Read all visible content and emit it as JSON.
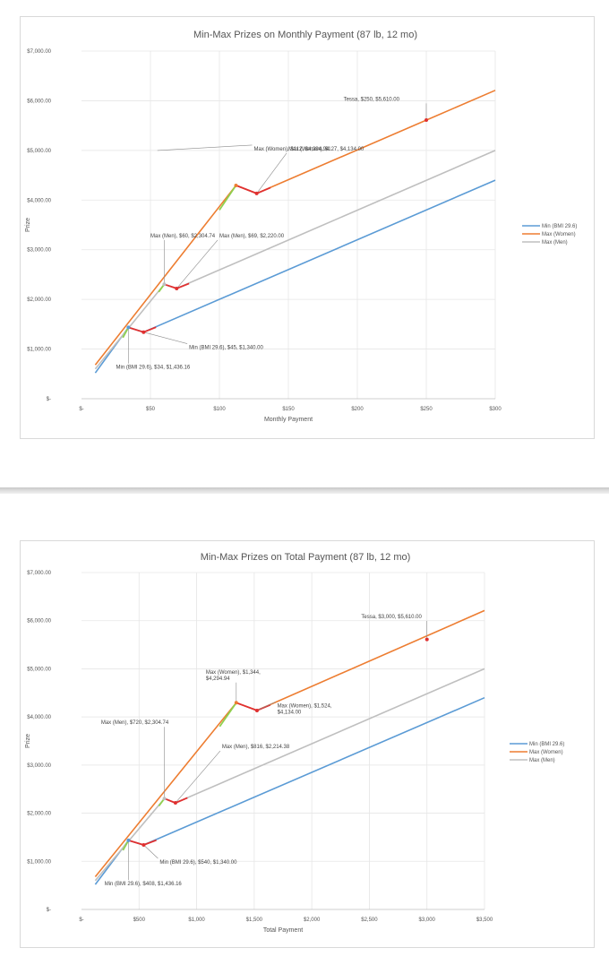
{
  "chart_data": [
    {
      "type": "line",
      "title": "Min-Max Prizes on Monthly Payment (87 lb, 12 mo)",
      "xlabel": "Monthly Payment",
      "ylabel": "Prize",
      "xlim": [
        0,
        300
      ],
      "ylim": [
        0,
        7000
      ],
      "x_ticks": [
        0,
        50,
        100,
        150,
        200,
        250,
        300
      ],
      "x_tick_labels": [
        "$-",
        "$50",
        "$100",
        "$150",
        "$200",
        "$250",
        "$300"
      ],
      "y_ticks": [
        0,
        1000,
        2000,
        3000,
        4000,
        5000,
        6000,
        7000
      ],
      "y_tick_labels": [
        "$-",
        "$1,000.00",
        "$2,000.00",
        "$3,000.00",
        "$4,000.00",
        "$5,000.00",
        "$6,000.00",
        "$7,000.00"
      ],
      "grid": true,
      "legend_position": "right",
      "series": [
        {
          "name": "Min (BMI 29.6)",
          "color": "#5b9bd5",
          "points": [
            [
              10,
              520
            ],
            [
              34,
              1436.16
            ],
            [
              45,
              1340
            ],
            [
              300,
              4400
            ]
          ]
        },
        {
          "name": "Max (Women)",
          "color": "#ed7d31",
          "points": [
            [
              10,
              680
            ],
            [
              112,
              4294.94
            ],
            [
              127,
              4134
            ],
            [
              300,
              6210
            ]
          ]
        },
        {
          "name": "Max (Men)",
          "color": "#bfbfbf",
          "points": [
            [
              10,
              600
            ],
            [
              60,
              2304.74
            ],
            [
              69,
              2220
            ],
            [
              300,
              5000
            ]
          ]
        }
      ],
      "highlights": [
        {
          "color": "#8fd14f",
          "points": [
            [
              30,
              1230
            ],
            [
              34,
              1436.16
            ]
          ]
        },
        {
          "color": "#8fd14f",
          "points": [
            [
              100,
              3800
            ],
            [
              112,
              4294.94
            ]
          ]
        },
        {
          "color": "#8fd14f",
          "points": [
            [
              56,
              2150
            ],
            [
              60,
              2304.74
            ]
          ]
        },
        {
          "color": "#e03030",
          "points": [
            [
              34,
              1436.16
            ],
            [
              45,
              1340
            ],
            [
              54,
              1440
            ]
          ]
        },
        {
          "color": "#e03030",
          "points": [
            [
              112,
              4294.94
            ],
            [
              127,
              4134
            ],
            [
              137,
              4250
            ]
          ]
        },
        {
          "color": "#e03030",
          "points": [
            [
              60,
              2304.74
            ],
            [
              69,
              2220
            ],
            [
              78,
              2320
            ]
          ]
        }
      ],
      "markers": [
        {
          "x": 34,
          "y": 1436.16,
          "color": "#5b9bd5"
        },
        {
          "x": 45,
          "y": 1340,
          "color": "#e03030"
        },
        {
          "x": 112,
          "y": 4294.94,
          "color": "#ed7d31"
        },
        {
          "x": 127,
          "y": 4134,
          "color": "#e03030"
        },
        {
          "x": 60,
          "y": 2304.74,
          "color": "#bfbfbf"
        },
        {
          "x": 69,
          "y": 2220,
          "color": "#e03030"
        },
        {
          "x": 250,
          "y": 5610,
          "color": "#e03030"
        }
      ],
      "annotations": [
        {
          "lines": [
            "Max (Women), $112, $4,294.94"
          ],
          "px": 55,
          "tx": 125,
          "ty": 5000
        },
        {
          "lines": [
            "Max (Women), $127, $4,134.00"
          ],
          "px": 127,
          "tx": 150,
          "ty": 5000
        },
        {
          "lines": [
            "Max (Men), $60, $2,304.74"
          ],
          "px": 60,
          "tx": 50,
          "ty": 3250
        },
        {
          "lines": [
            "Max (Men), $69, $2,220.00"
          ],
          "px": 69,
          "tx": 100,
          "ty": 3250
        },
        {
          "lines": [
            "Min (BMI 29.6), $45, $1,340.00"
          ],
          "px": 45,
          "tx": 78,
          "ty": 1000
        },
        {
          "lines": [
            "Min (BMI 29.6), $34, $1,436.16"
          ],
          "px": 34,
          "tx": 25,
          "ty": 600
        },
        {
          "lines": [
            "Tessa, $250, $5,610.00"
          ],
          "px": 250,
          "tx": 190,
          "ty": 6000
        }
      ]
    },
    {
      "type": "line",
      "title": "Min-Max Prizes on Total Payment (87 lb, 12 mo)",
      "xlabel": "Total Payment",
      "ylabel": "Prize",
      "xlim": [
        0,
        3500
      ],
      "ylim": [
        0,
        7000
      ],
      "x_ticks": [
        0,
        500,
        1000,
        1500,
        2000,
        2500,
        3000,
        3500
      ],
      "x_tick_labels": [
        "$-",
        "$500",
        "$1,000",
        "$1,500",
        "$2,000",
        "$2,500",
        "$3,000",
        "$3,500"
      ],
      "y_ticks": [
        0,
        1000,
        2000,
        3000,
        4000,
        5000,
        6000,
        7000
      ],
      "y_tick_labels": [
        "$-",
        "$1,000.00",
        "$2,000.00",
        "$3,000.00",
        "$4,000.00",
        "$5,000.00",
        "$6,000.00",
        "$7,000.00"
      ],
      "grid": true,
      "legend_position": "right",
      "series": [
        {
          "name": "Min (BMI 29.6)",
          "color": "#5b9bd5",
          "points": [
            [
              120,
              520
            ],
            [
              408,
              1436.16
            ],
            [
              540,
              1340
            ],
            [
              3500,
              4400
            ]
          ]
        },
        {
          "name": "Max (Women)",
          "color": "#ed7d31",
          "points": [
            [
              120,
              680
            ],
            [
              1344,
              4294.94
            ],
            [
              1524,
              4134
            ],
            [
              3500,
              6210
            ]
          ]
        },
        {
          "name": "Max (Men)",
          "color": "#bfbfbf",
          "points": [
            [
              120,
              600
            ],
            [
              720,
              2304.74
            ],
            [
              816,
              2214.38
            ],
            [
              3500,
              5000
            ]
          ]
        }
      ],
      "highlights": [
        {
          "color": "#8fd14f",
          "points": [
            [
              360,
              1230
            ],
            [
              408,
              1436.16
            ]
          ]
        },
        {
          "color": "#8fd14f",
          "points": [
            [
              1200,
              3800
            ],
            [
              1344,
              4294.94
            ]
          ]
        },
        {
          "color": "#8fd14f",
          "points": [
            [
              672,
              2150
            ],
            [
              720,
              2304.74
            ]
          ]
        },
        {
          "color": "#e03030",
          "points": [
            [
              408,
              1436.16
            ],
            [
              540,
              1340
            ],
            [
              650,
              1440
            ]
          ]
        },
        {
          "color": "#e03030",
          "points": [
            [
              1344,
              4294.94
            ],
            [
              1524,
              4134
            ],
            [
              1640,
              4250
            ]
          ]
        },
        {
          "color": "#e03030",
          "points": [
            [
              720,
              2304.74
            ],
            [
              816,
              2214.38
            ],
            [
              920,
              2320
            ]
          ]
        }
      ],
      "markers": [
        {
          "x": 408,
          "y": 1436.16,
          "color": "#5b9bd5"
        },
        {
          "x": 540,
          "y": 1340,
          "color": "#e03030"
        },
        {
          "x": 1344,
          "y": 4294.94,
          "color": "#ed7d31"
        },
        {
          "x": 1524,
          "y": 4134,
          "color": "#e03030"
        },
        {
          "x": 720,
          "y": 2304.74,
          "color": "#bfbfbf"
        },
        {
          "x": 816,
          "y": 2214.38,
          "color": "#e03030"
        },
        {
          "x": 3000,
          "y": 5610,
          "color": "#e03030"
        }
      ],
      "annotations": [
        {
          "lines": [
            "Max (Women), $1,344,",
            "$4,294.94"
          ],
          "px": 1344,
          "tx": 1080,
          "ty": 4900
        },
        {
          "lines": [
            "Max (Women), $1,524,",
            "$4,134.00"
          ],
          "px": 1524,
          "tx": 1700,
          "ty": 4200
        },
        {
          "lines": [
            "Max (Men), $720, $2,304.74"
          ],
          "px": 720,
          "tx": 170,
          "ty": 3850
        },
        {
          "lines": [
            "Max (Men), $816, $2,214.38"
          ],
          "px": 816,
          "tx": 1220,
          "ty": 3350
        },
        {
          "lines": [
            "Min (BMI 29.6), $540, $1,340.00"
          ],
          "px": 540,
          "tx": 680,
          "ty": 950
        },
        {
          "lines": [
            "Min (BMI 29.6), $408, $1,436.16"
          ],
          "px": 408,
          "tx": 200,
          "ty": 500
        },
        {
          "lines": [
            "Tessa, $3,000, $5,610.00"
          ],
          "px": 3000,
          "tx": 2430,
          "ty": 6050
        }
      ]
    }
  ]
}
